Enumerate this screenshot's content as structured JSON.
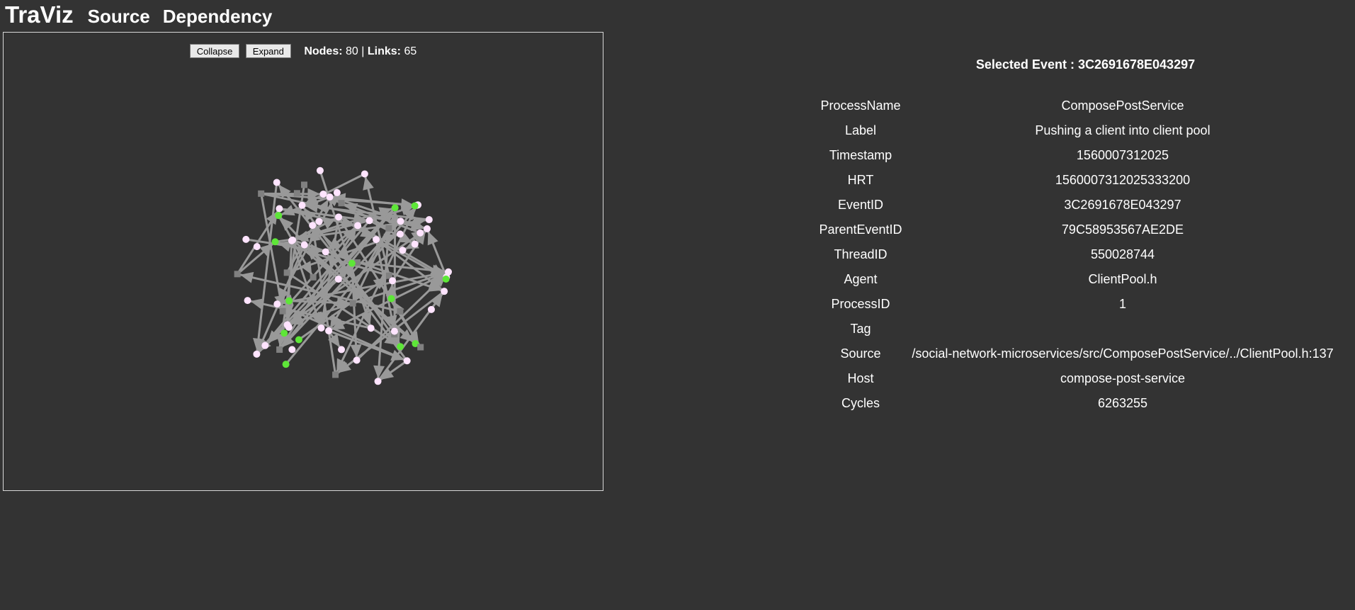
{
  "app": {
    "title": "TraViz",
    "nav": [
      "Source",
      "Dependency"
    ]
  },
  "graph": {
    "collapse_label": "Collapse",
    "expand_label": "Expand",
    "nodes_label": "Nodes:",
    "nodes_value": "80",
    "links_label": "Links:",
    "links_value": "65",
    "colors": {
      "node_default": "#ffe4ff",
      "node_highlight": "#5ee638",
      "link": "#999999",
      "square": "#808080"
    }
  },
  "details": {
    "title": "Selected Event : 3C2691678E043297",
    "rows": [
      {
        "key": "ProcessName",
        "value": "ComposePostService"
      },
      {
        "key": "Label",
        "value": "Pushing a client into client pool"
      },
      {
        "key": "Timestamp",
        "value": "1560007312025"
      },
      {
        "key": "HRT",
        "value": "1560007312025333200"
      },
      {
        "key": "EventID",
        "value": "3C2691678E043297"
      },
      {
        "key": "ParentEventID",
        "value": "79C58953567AE2DE"
      },
      {
        "key": "ThreadID",
        "value": "550028744"
      },
      {
        "key": "Agent",
        "value": "ClientPool.h"
      },
      {
        "key": "ProcessID",
        "value": "1"
      },
      {
        "key": "Tag",
        "value": ""
      },
      {
        "key": "Source",
        "value": "/social-network-microservices/src/ComposePostService/../ClientPool.h:137"
      },
      {
        "key": "Host",
        "value": "compose-post-service"
      },
      {
        "key": "Cycles",
        "value": "6263255"
      }
    ]
  }
}
